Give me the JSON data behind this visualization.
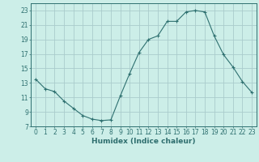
{
  "title": "",
  "xlabel": "Humidex (Indice chaleur)",
  "ylabel": "",
  "x": [
    0,
    1,
    2,
    3,
    4,
    5,
    6,
    7,
    8,
    9,
    10,
    11,
    12,
    13,
    14,
    15,
    16,
    17,
    18,
    19,
    20,
    21,
    22,
    23
  ],
  "y": [
    13.5,
    12.2,
    11.8,
    10.5,
    9.5,
    8.5,
    8.0,
    7.8,
    7.9,
    11.2,
    14.3,
    17.2,
    19.0,
    19.5,
    21.5,
    21.5,
    22.8,
    23.0,
    22.8,
    19.5,
    16.9,
    15.2,
    13.2,
    11.7
  ],
  "line_color": "#2e7070",
  "marker": "P",
  "marker_size": 2.0,
  "bg_color": "#cceee8",
  "grid_color": "#aacccc",
  "axis_color": "#2e7070",
  "text_color": "#2e6e6e",
  "ylim": [
    7,
    24
  ],
  "xlim": [
    -0.5,
    23.5
  ],
  "yticks": [
    7,
    9,
    11,
    13,
    15,
    17,
    19,
    21,
    23
  ],
  "xticks": [
    0,
    1,
    2,
    3,
    4,
    5,
    6,
    7,
    8,
    9,
    10,
    11,
    12,
    13,
    14,
    15,
    16,
    17,
    18,
    19,
    20,
    21,
    22,
    23
  ],
  "tick_fontsize": 5.5,
  "xlabel_fontsize": 6.5
}
